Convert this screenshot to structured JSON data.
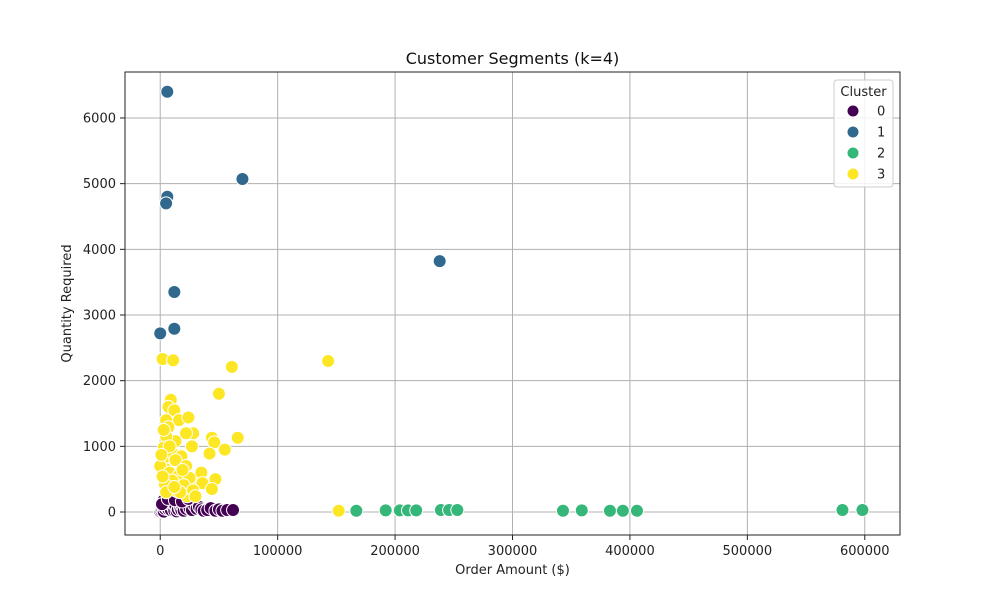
{
  "chart_data": {
    "type": "scatter",
    "title": "Customer Segments (k=4)",
    "xlabel": "Order Amount ($)",
    "ylabel": "Quantity Required",
    "xlim": [
      -30000,
      630000
    ],
    "ylim": [
      -350,
      6700
    ],
    "x_ticks": [
      0,
      100000,
      200000,
      300000,
      400000,
      500000,
      600000
    ],
    "y_ticks": [
      0,
      1000,
      2000,
      3000,
      4000,
      5000,
      6000
    ],
    "grid": true,
    "legend": {
      "title": "Cluster",
      "position": "top-right"
    },
    "series": [
      {
        "name": "0",
        "color": "#440154",
        "points": [
          [
            0,
            10
          ],
          [
            1000,
            20
          ],
          [
            2000,
            30
          ],
          [
            3000,
            5
          ],
          [
            4000,
            50
          ],
          [
            5000,
            80
          ],
          [
            5000,
            270
          ],
          [
            6000,
            60
          ],
          [
            7000,
            40
          ],
          [
            8000,
            100
          ],
          [
            9000,
            30
          ],
          [
            10000,
            150
          ],
          [
            11000,
            70
          ],
          [
            12000,
            20
          ],
          [
            13000,
            90
          ],
          [
            14000,
            10
          ],
          [
            15000,
            40
          ],
          [
            16000,
            120
          ],
          [
            17000,
            60
          ],
          [
            18000,
            30
          ],
          [
            19000,
            80
          ],
          [
            20000,
            20
          ],
          [
            21000,
            110
          ],
          [
            22000,
            50
          ],
          [
            23000,
            140
          ],
          [
            25000,
            60
          ],
          [
            27000,
            30
          ],
          [
            29000,
            100
          ],
          [
            31000,
            50
          ],
          [
            33000,
            80
          ],
          [
            35000,
            40
          ],
          [
            37000,
            20
          ],
          [
            40000,
            30
          ],
          [
            43000,
            60
          ],
          [
            47000,
            20
          ],
          [
            50000,
            40
          ],
          [
            53000,
            20
          ],
          [
            57000,
            30
          ],
          [
            62000,
            30
          ],
          [
            3000,
            180
          ],
          [
            1500,
            120
          ],
          [
            6500,
            200
          ],
          [
            12500,
            180
          ],
          [
            18500,
            160
          ],
          [
            24000,
            200
          ]
        ]
      },
      {
        "name": "1",
        "color": "#31688e",
        "points": [
          [
            6000,
            6400
          ],
          [
            70000,
            5070
          ],
          [
            6000,
            4800
          ],
          [
            5000,
            4700
          ],
          [
            238000,
            3820
          ],
          [
            12000,
            3350
          ],
          [
            0,
            2720
          ],
          [
            12000,
            2790
          ]
        ]
      },
      {
        "name": "2",
        "color": "#35b779",
        "points": [
          [
            167000,
            20
          ],
          [
            192000,
            25
          ],
          [
            204000,
            25
          ],
          [
            211000,
            25
          ],
          [
            218000,
            25
          ],
          [
            239000,
            30
          ],
          [
            246000,
            30
          ],
          [
            253000,
            30
          ],
          [
            343000,
            20
          ],
          [
            359000,
            25
          ],
          [
            383000,
            20
          ],
          [
            394000,
            20
          ],
          [
            406000,
            20
          ],
          [
            581000,
            30
          ],
          [
            598000,
            30
          ]
        ]
      },
      {
        "name": "3",
        "color": "#fde725",
        "points": [
          [
            2000,
            2330
          ],
          [
            11000,
            2310
          ],
          [
            61000,
            2210
          ],
          [
            143000,
            2300
          ],
          [
            50000,
            1800
          ],
          [
            9000,
            1710
          ],
          [
            7000,
            1600
          ],
          [
            12000,
            1550
          ],
          [
            16000,
            1400
          ],
          [
            24000,
            1440
          ],
          [
            5000,
            1400
          ],
          [
            7000,
            1290
          ],
          [
            28000,
            1200
          ],
          [
            22000,
            1200
          ],
          [
            13000,
            1080
          ],
          [
            44000,
            1130
          ],
          [
            46000,
            1060
          ],
          [
            66000,
            1130
          ],
          [
            27000,
            1000
          ],
          [
            55000,
            950
          ],
          [
            42000,
            890
          ],
          [
            5000,
            1150
          ],
          [
            3000,
            980
          ],
          [
            10000,
            900
          ],
          [
            18000,
            850
          ],
          [
            2000,
            780
          ],
          [
            13000,
            790
          ],
          [
            22000,
            700
          ],
          [
            5000,
            650
          ],
          [
            0,
            700
          ],
          [
            8000,
            600
          ],
          [
            16000,
            560
          ],
          [
            31000,
            450
          ],
          [
            35000,
            600
          ],
          [
            25000,
            520
          ],
          [
            10000,
            480
          ],
          [
            4000,
            420
          ],
          [
            20000,
            410
          ],
          [
            36000,
            440
          ],
          [
            47000,
            500
          ],
          [
            44000,
            350
          ],
          [
            14000,
            320
          ],
          [
            23000,
            240
          ],
          [
            17000,
            300
          ],
          [
            28000,
            330
          ],
          [
            5000,
            300
          ],
          [
            12000,
            380
          ],
          [
            30000,
            240
          ],
          [
            2000,
            540
          ],
          [
            19000,
            640
          ],
          [
            8000,
            1000
          ],
          [
            3000,
            1250
          ],
          [
            1000,
            870
          ],
          [
            152000,
            20
          ]
        ]
      }
    ]
  }
}
